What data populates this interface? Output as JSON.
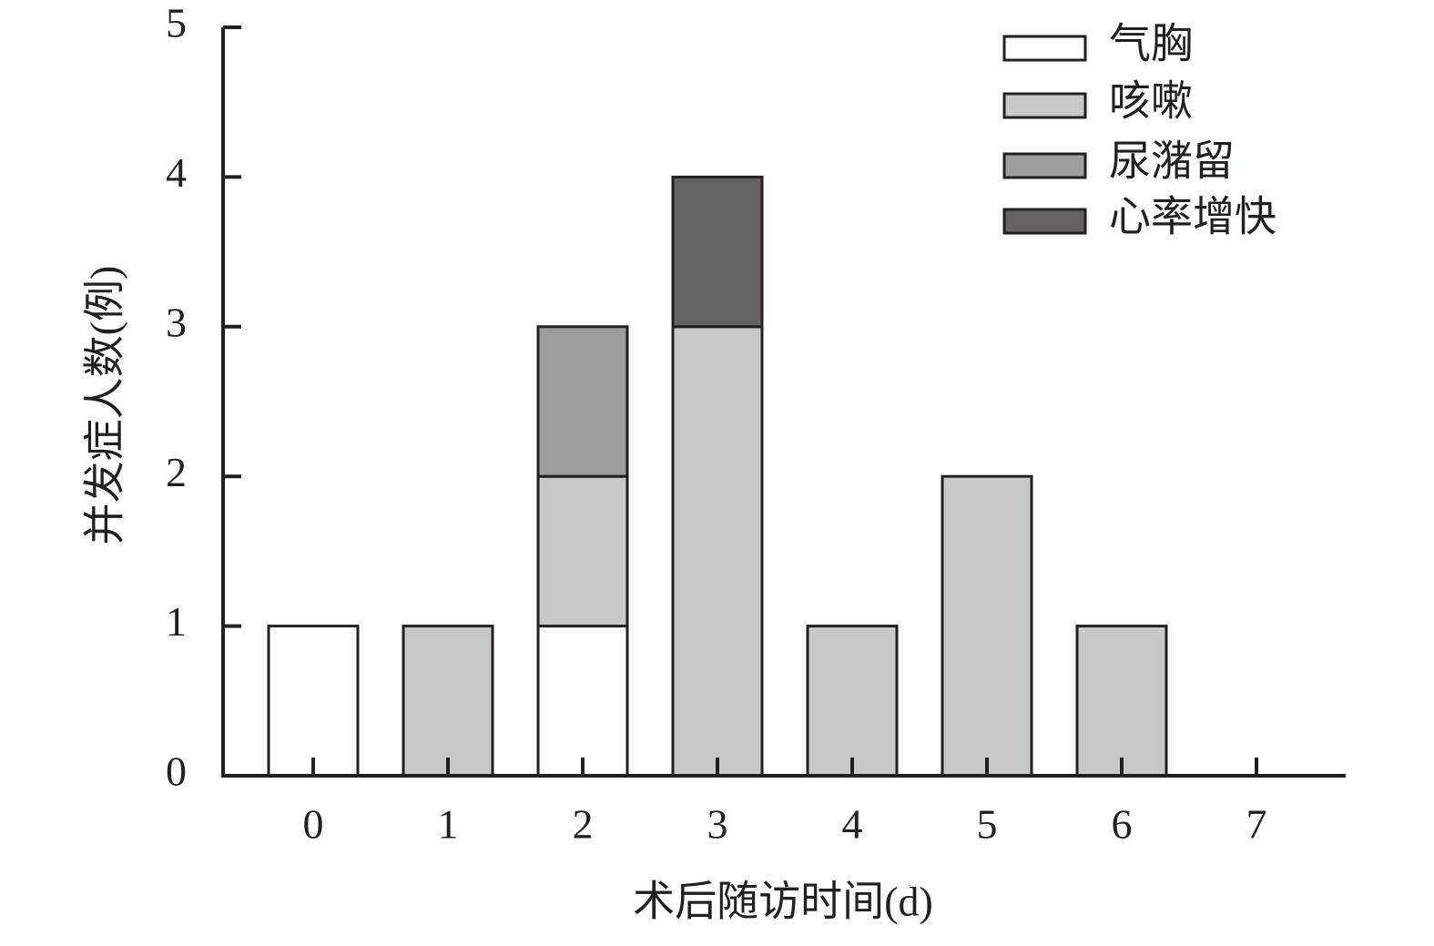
{
  "chart_data": {
    "type": "stacked_bar",
    "x_label": "术后随访时间(d)",
    "y_label": "并发症人数(例)",
    "categories": [
      "0",
      "1",
      "2",
      "3",
      "4",
      "5",
      "6",
      "7"
    ],
    "series": [
      {
        "name": "气胸",
        "color": "#ffffff",
        "values": [
          1,
          0,
          1,
          0,
          0,
          0,
          0,
          0
        ]
      },
      {
        "name": "咳嗽",
        "color": "#c8c8c8",
        "values": [
          0,
          1,
          1,
          3,
          1,
          2,
          1,
          0
        ]
      },
      {
        "name": "尿潴留",
        "color": "#9e9d9d",
        "values": [
          0,
          0,
          1,
          0,
          0,
          0,
          0,
          0
        ]
      },
      {
        "name": "心率增快",
        "color": "#646263",
        "values": [
          0,
          0,
          0,
          1,
          0,
          0,
          0,
          0
        ]
      }
    ],
    "ylim": [
      0,
      5
    ],
    "yticks": [
      0,
      1,
      2,
      3,
      4,
      5
    ],
    "legend": "upper right"
  }
}
